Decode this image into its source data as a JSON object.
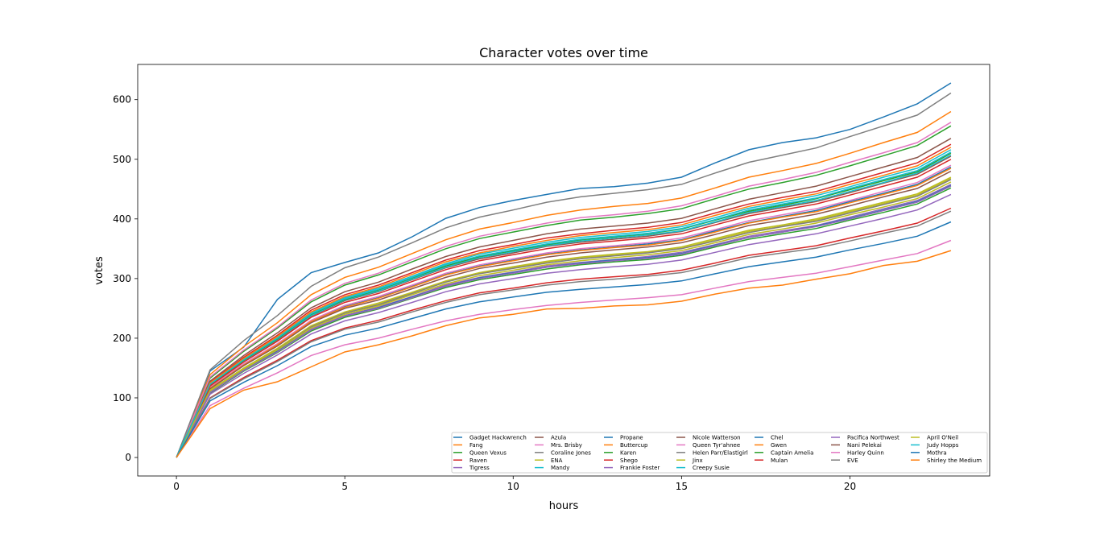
{
  "chart_data": {
    "type": "line",
    "title": "Character votes over time",
    "xlabel": "hours",
    "ylabel": "votes",
    "xlim": [
      -1.15,
      24.15
    ],
    "ylim": [
      -31,
      659
    ],
    "xticks": [
      0,
      5,
      10,
      15,
      20
    ],
    "yticks": [
      0,
      100,
      200,
      300,
      400,
      500,
      600
    ],
    "grid": false,
    "legend_placement": "lower-right",
    "legend_columns": 7,
    "x": [
      0,
      1,
      2,
      3,
      4,
      5,
      6,
      7,
      8,
      9,
      10,
      11,
      12,
      13,
      14,
      15,
      16,
      17,
      18,
      19,
      20,
      21,
      22,
      23
    ],
    "series": [
      {
        "name": "Gadget Hackwrench",
        "color": "#1f77b4",
        "values": [
          0,
          145,
          185,
          265,
          310,
          327,
          343,
          370,
          401,
          419,
          431,
          441,
          451,
          454,
          460,
          470,
          494,
          516,
          528,
          536,
          550,
          571,
          593,
          628
        ]
      },
      {
        "name": "Fang",
        "color": "#ff7f0e",
        "values": [
          0,
          139,
          186,
          226,
          273,
          302,
          319,
          342,
          365,
          383,
          394,
          406,
          415,
          421,
          426,
          435,
          452,
          470,
          481,
          493,
          510,
          528,
          545,
          580
        ]
      },
      {
        "name": "Queen Vexus",
        "color": "#2ca02c",
        "values": [
          0,
          133,
          178,
          217,
          261,
          289,
          306,
          328,
          350,
          367,
          378,
          389,
          398,
          403,
          409,
          417,
          434,
          450,
          461,
          473,
          489,
          506,
          523,
          556
        ]
      },
      {
        "name": "Raven",
        "color": "#d62728",
        "values": [
          0,
          126,
          168,
          205,
          247,
          273,
          289,
          310,
          331,
          347,
          357,
          368,
          375,
          381,
          386,
          394,
          410,
          425,
          436,
          446,
          462,
          478,
          494,
          525
        ]
      },
      {
        "name": "Tigress",
        "color": "#9467bd",
        "values": [
          0,
          110,
          147,
          179,
          215,
          238,
          252,
          270,
          289,
          302,
          311,
          321,
          327,
          332,
          337,
          344,
          357,
          371,
          380,
          389,
          403,
          417,
          431,
          458
        ]
      },
      {
        "name": "Azula",
        "color": "#8c564b",
        "values": [
          0,
          128,
          171,
          209,
          251,
          278,
          294,
          316,
          337,
          353,
          364,
          375,
          383,
          388,
          393,
          401,
          417,
          433,
          444,
          455,
          471,
          487,
          503,
          535
        ]
      },
      {
        "name": "Mrs. Brisby",
        "color": "#e377c2",
        "values": [
          0,
          135,
          180,
          219,
          264,
          292,
          309,
          332,
          354,
          371,
          382,
          393,
          402,
          407,
          413,
          422,
          438,
          455,
          466,
          478,
          495,
          511,
          528,
          562
        ]
      },
      {
        "name": "Coraline Jones",
        "color": "#7f7f7f",
        "values": [
          0,
          147,
          196,
          238,
          287,
          318,
          336,
          360,
          385,
          403,
          415,
          428,
          437,
          443,
          449,
          458,
          477,
          495,
          507,
          519,
          538,
          556,
          574,
          611
        ]
      },
      {
        "name": "ENA",
        "color": "#bcbd22",
        "values": [
          0,
          112,
          150,
          183,
          220,
          243,
          257,
          276,
          295,
          309,
          318,
          328,
          335,
          339,
          344,
          351,
          365,
          379,
          388,
          398,
          412,
          426,
          440,
          468
        ]
      },
      {
        "name": "Mandy",
        "color": "#17becf",
        "values": [
          0,
          124,
          165,
          201,
          243,
          268,
          284,
          304,
          325,
          341,
          351,
          361,
          369,
          374,
          379,
          387,
          402,
          418,
          428,
          439,
          454,
          470,
          485,
          516
        ]
      },
      {
        "name": "Propane",
        "color": "#1f77b4",
        "values": [
          0,
          117,
          156,
          190,
          229,
          253,
          268,
          287,
          307,
          321,
          331,
          341,
          348,
          353,
          358,
          365,
          380,
          394,
          404,
          414,
          429,
          443,
          458,
          487
        ]
      },
      {
        "name": "Buttercup",
        "color": "#ff7f0e",
        "values": [
          0,
          125,
          166,
          203,
          244,
          270,
          286,
          307,
          328,
          343,
          354,
          364,
          372,
          377,
          382,
          390,
          406,
          421,
          432,
          442,
          458,
          473,
          489,
          520
        ]
      },
      {
        "name": "Karen",
        "color": "#2ca02c",
        "values": [
          0,
          108,
          145,
          176,
          212,
          235,
          249,
          267,
          285,
          298,
          307,
          316,
          323,
          328,
          332,
          339,
          353,
          366,
          375,
          384,
          398,
          411,
          425,
          452
        ]
      },
      {
        "name": "Shego",
        "color": "#d62728",
        "values": [
          0,
          100,
          134,
          163,
          196,
          217,
          230,
          247,
          263,
          276,
          284,
          293,
          299,
          303,
          307,
          314,
          326,
          339,
          347,
          355,
          368,
          380,
          393,
          418
        ]
      },
      {
        "name": "Frankie Foster",
        "color": "#9467bd",
        "values": [
          0,
          106,
          141,
          172,
          207,
          229,
          243,
          260,
          278,
          291,
          300,
          309,
          315,
          320,
          324,
          331,
          344,
          357,
          366,
          375,
          388,
          401,
          415,
          441
        ]
      },
      {
        "name": "Nicole Watterson",
        "color": "#8c564b",
        "values": [
          0,
          121,
          162,
          197,
          237,
          263,
          278,
          298,
          318,
          333,
          343,
          354,
          361,
          366,
          371,
          379,
          394,
          409,
          419,
          429,
          444,
          460,
          475,
          505
        ]
      },
      {
        "name": "Queen Tyr'ahnee",
        "color": "#e377c2",
        "values": [
          0,
          118,
          157,
          191,
          230,
          255,
          270,
          289,
          309,
          323,
          333,
          343,
          350,
          355,
          360,
          368,
          382,
          397,
          407,
          417,
          431,
          446,
          461,
          490
        ]
      },
      {
        "name": "Helen Parr/Elastigirl",
        "color": "#7f7f7f",
        "values": [
          0,
          112,
          149,
          182,
          219,
          242,
          256,
          275,
          294,
          308,
          317,
          326,
          333,
          338,
          343,
          350,
          363,
          377,
          387,
          396,
          410,
          424,
          438,
          466
        ]
      },
      {
        "name": "Jinx",
        "color": "#bcbd22",
        "values": [
          0,
          111,
          148,
          180,
          217,
          240,
          254,
          273,
          291,
          305,
          314,
          323,
          330,
          335,
          340,
          347,
          360,
          374,
          383,
          393,
          407,
          420,
          434,
          462
        ]
      },
      {
        "name": "Creepy Susie",
        "color": "#17becf",
        "values": [
          0,
          122,
          162,
          198,
          238,
          264,
          279,
          299,
          319,
          335,
          345,
          355,
          363,
          368,
          373,
          380,
          395,
          411,
          421,
          431,
          446,
          461,
          477,
          507
        ]
      },
      {
        "name": "Chel",
        "color": "#1f77b4",
        "values": [
          0,
          109,
          146,
          178,
          214,
          237,
          251,
          269,
          287,
          301,
          310,
          319,
          326,
          331,
          335,
          342,
          356,
          369,
          378,
          388,
          401,
          415,
          429,
          456
        ]
      },
      {
        "name": "Gwen",
        "color": "#ff7f0e",
        "values": [
          0,
          116,
          155,
          189,
          228,
          252,
          267,
          286,
          306,
          320,
          330,
          340,
          347,
          352,
          356,
          364,
          378,
          393,
          403,
          412,
          427,
          441,
          456,
          485
        ]
      },
      {
        "name": "Captain Amelia",
        "color": "#2ca02c",
        "values": [
          0,
          122,
          163,
          199,
          240,
          265,
          281,
          301,
          321,
          337,
          347,
          357,
          365,
          370,
          375,
          383,
          398,
          413,
          423,
          434,
          449,
          464,
          479,
          510
        ]
      },
      {
        "name": "Mulan",
        "color": "#d62728",
        "values": [
          0,
          120,
          160,
          195,
          235,
          260,
          275,
          295,
          315,
          330,
          340,
          350,
          358,
          363,
          368,
          375,
          390,
          405,
          415,
          425,
          440,
          455,
          470,
          500
        ]
      },
      {
        "name": "Pacifica Northwest",
        "color": "#9467bd",
        "values": [
          0,
          109,
          146,
          177,
          214,
          237,
          250,
          268,
          287,
          300,
          309,
          319,
          325,
          330,
          334,
          341,
          355,
          369,
          378,
          387,
          400,
          414,
          428,
          455
        ]
      },
      {
        "name": "Nani Pelekai",
        "color": "#8c564b",
        "values": [
          0,
          115,
          154,
          187,
          226,
          250,
          264,
          283,
          302,
          317,
          326,
          336,
          343,
          348,
          353,
          360,
          374,
          389,
          398,
          408,
          422,
          437,
          451,
          480
        ]
      },
      {
        "name": "Harley Quinn",
        "color": "#e377c2",
        "values": [
          0,
          87,
          116,
          142,
          171,
          189,
          200,
          215,
          229,
          240,
          248,
          255,
          260,
          264,
          268,
          273,
          284,
          295,
          302,
          309,
          320,
          331,
          342,
          364
        ]
      },
      {
        "name": "EVE",
        "color": "#7f7f7f",
        "values": [
          0,
          99,
          132,
          161,
          194,
          215,
          227,
          244,
          260,
          273,
          281,
          289,
          295,
          299,
          304,
          310,
          322,
          335,
          343,
          351,
          363,
          376,
          388,
          413
        ]
      },
      {
        "name": "April O'Neil",
        "color": "#bcbd22",
        "values": [
          0,
          113,
          150,
          183,
          221,
          244,
          259,
          277,
          296,
          310,
          320,
          329,
          336,
          341,
          345,
          353,
          367,
          381,
          390,
          400,
          414,
          428,
          442,
          470
        ]
      },
      {
        "name": "Judy Hopps",
        "color": "#17becf",
        "values": [
          0,
          123,
          164,
          200,
          241,
          266,
          282,
          302,
          323,
          338,
          348,
          358,
          366,
          371,
          376,
          384,
          399,
          415,
          425,
          435,
          451,
          466,
          481,
          512
        ]
      },
      {
        "name": "Mothra",
        "color": "#1f77b4",
        "values": [
          0,
          95,
          126,
          154,
          186,
          205,
          217,
          233,
          249,
          261,
          269,
          277,
          282,
          286,
          290,
          296,
          308,
          320,
          328,
          336,
          348,
          359,
          371,
          395
        ]
      },
      {
        "name": "Shirley the Medium",
        "color": "#ff7f0e",
        "values": [
          0,
          82,
          113,
          127,
          152,
          177,
          189,
          204,
          221,
          234,
          240,
          249,
          250,
          254,
          256,
          262,
          274,
          284,
          289,
          299,
          308,
          322,
          329,
          347
        ]
      }
    ]
  }
}
